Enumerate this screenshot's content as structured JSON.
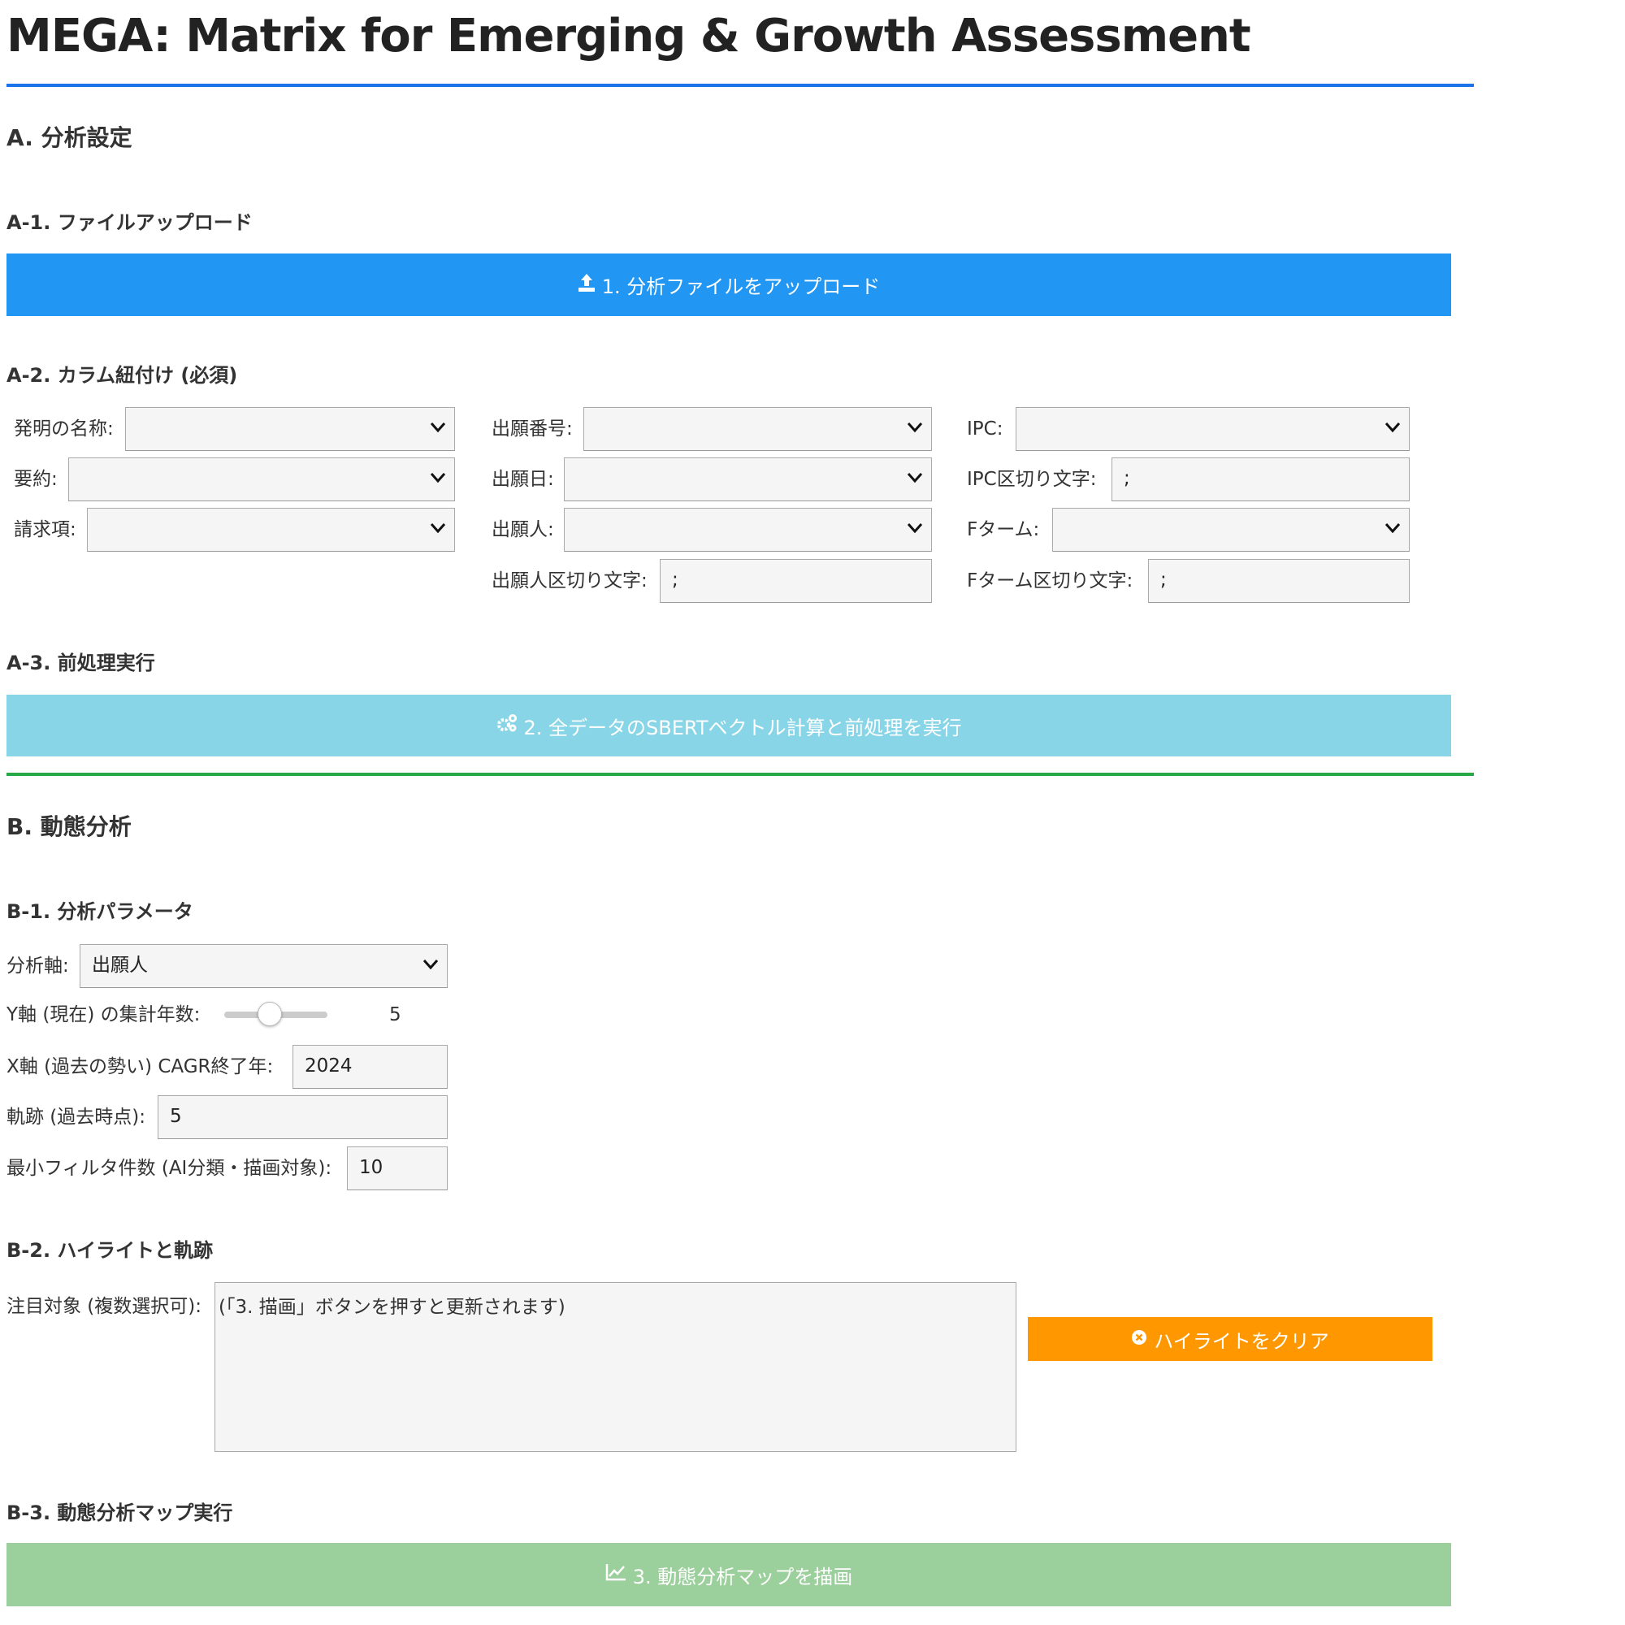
{
  "title": "MEGA: Matrix for Emerging & Growth Assessment",
  "colors": {
    "title_rule": "#1a73e8",
    "section_rule": "#28a745",
    "upload": "#2196F3",
    "preprocess": "#87D5E6",
    "clear": "#FF9800",
    "draw": "#9BCF9B"
  },
  "sectionA": {
    "heading": "A. 分析設定",
    "a1": {
      "heading": "A-1. ファイルアップロード",
      "button": "1. 分析ファイルをアップロード",
      "icon": "upload-icon"
    },
    "a2": {
      "heading": "A-2. カラム紐付け (必須)",
      "fields": {
        "title": {
          "label": "発明の名称:",
          "value": ""
        },
        "abstract": {
          "label": "要約:",
          "value": ""
        },
        "claims": {
          "label": "請求項:",
          "value": ""
        },
        "app_number": {
          "label": "出願番号:",
          "value": ""
        },
        "app_date": {
          "label": "出願日:",
          "value": ""
        },
        "applicant": {
          "label": "出願人:",
          "value": ""
        },
        "applicant_sep": {
          "label": "出願人区切り文字:",
          "value": ";"
        },
        "ipc": {
          "label": "IPC:",
          "value": ""
        },
        "ipc_sep": {
          "label": "IPC区切り文字:",
          "value": ";"
        },
        "fterm": {
          "label": "Fターム:",
          "value": ""
        },
        "fterm_sep": {
          "label": "Fターム区切り文字:",
          "value": ";"
        }
      }
    },
    "a3": {
      "heading": "A-3. 前処理実行",
      "button": "2. 全データのSBERTベクトル計算と前処理を実行",
      "icon": "gears-icon"
    }
  },
  "sectionB": {
    "heading": "B. 動態分析",
    "b1": {
      "heading": "B-1. 分析パラメータ",
      "axis": {
        "label": "分析軸:",
        "value": "出願人"
      },
      "y_years": {
        "label": "Y軸 (現在) の集計年数:",
        "value": 5,
        "min": 1,
        "max": 10,
        "display": "5"
      },
      "cagr_end": {
        "label": "X軸 (過去の勢い) CAGR終了年:",
        "value": "2024"
      },
      "trajectory": {
        "label": "軌跡 (過去時点):",
        "value": "5"
      },
      "min_filter": {
        "label": "最小フィルタ件数 (AI分類・描画対象):",
        "value": "10"
      }
    },
    "b2": {
      "heading": "B-2. ハイライトと軌跡",
      "target_label": "注目対象 (複数選択可):",
      "target_value": "(「3. 描画」ボタンを押すと更新されます)",
      "clear_button": "ハイライトをクリア",
      "icon": "times-circle-icon"
    },
    "b3": {
      "heading": "B-3. 動態分析マップ実行",
      "button": "3. 動態分析マップを描画",
      "icon": "line-chart-icon"
    }
  }
}
